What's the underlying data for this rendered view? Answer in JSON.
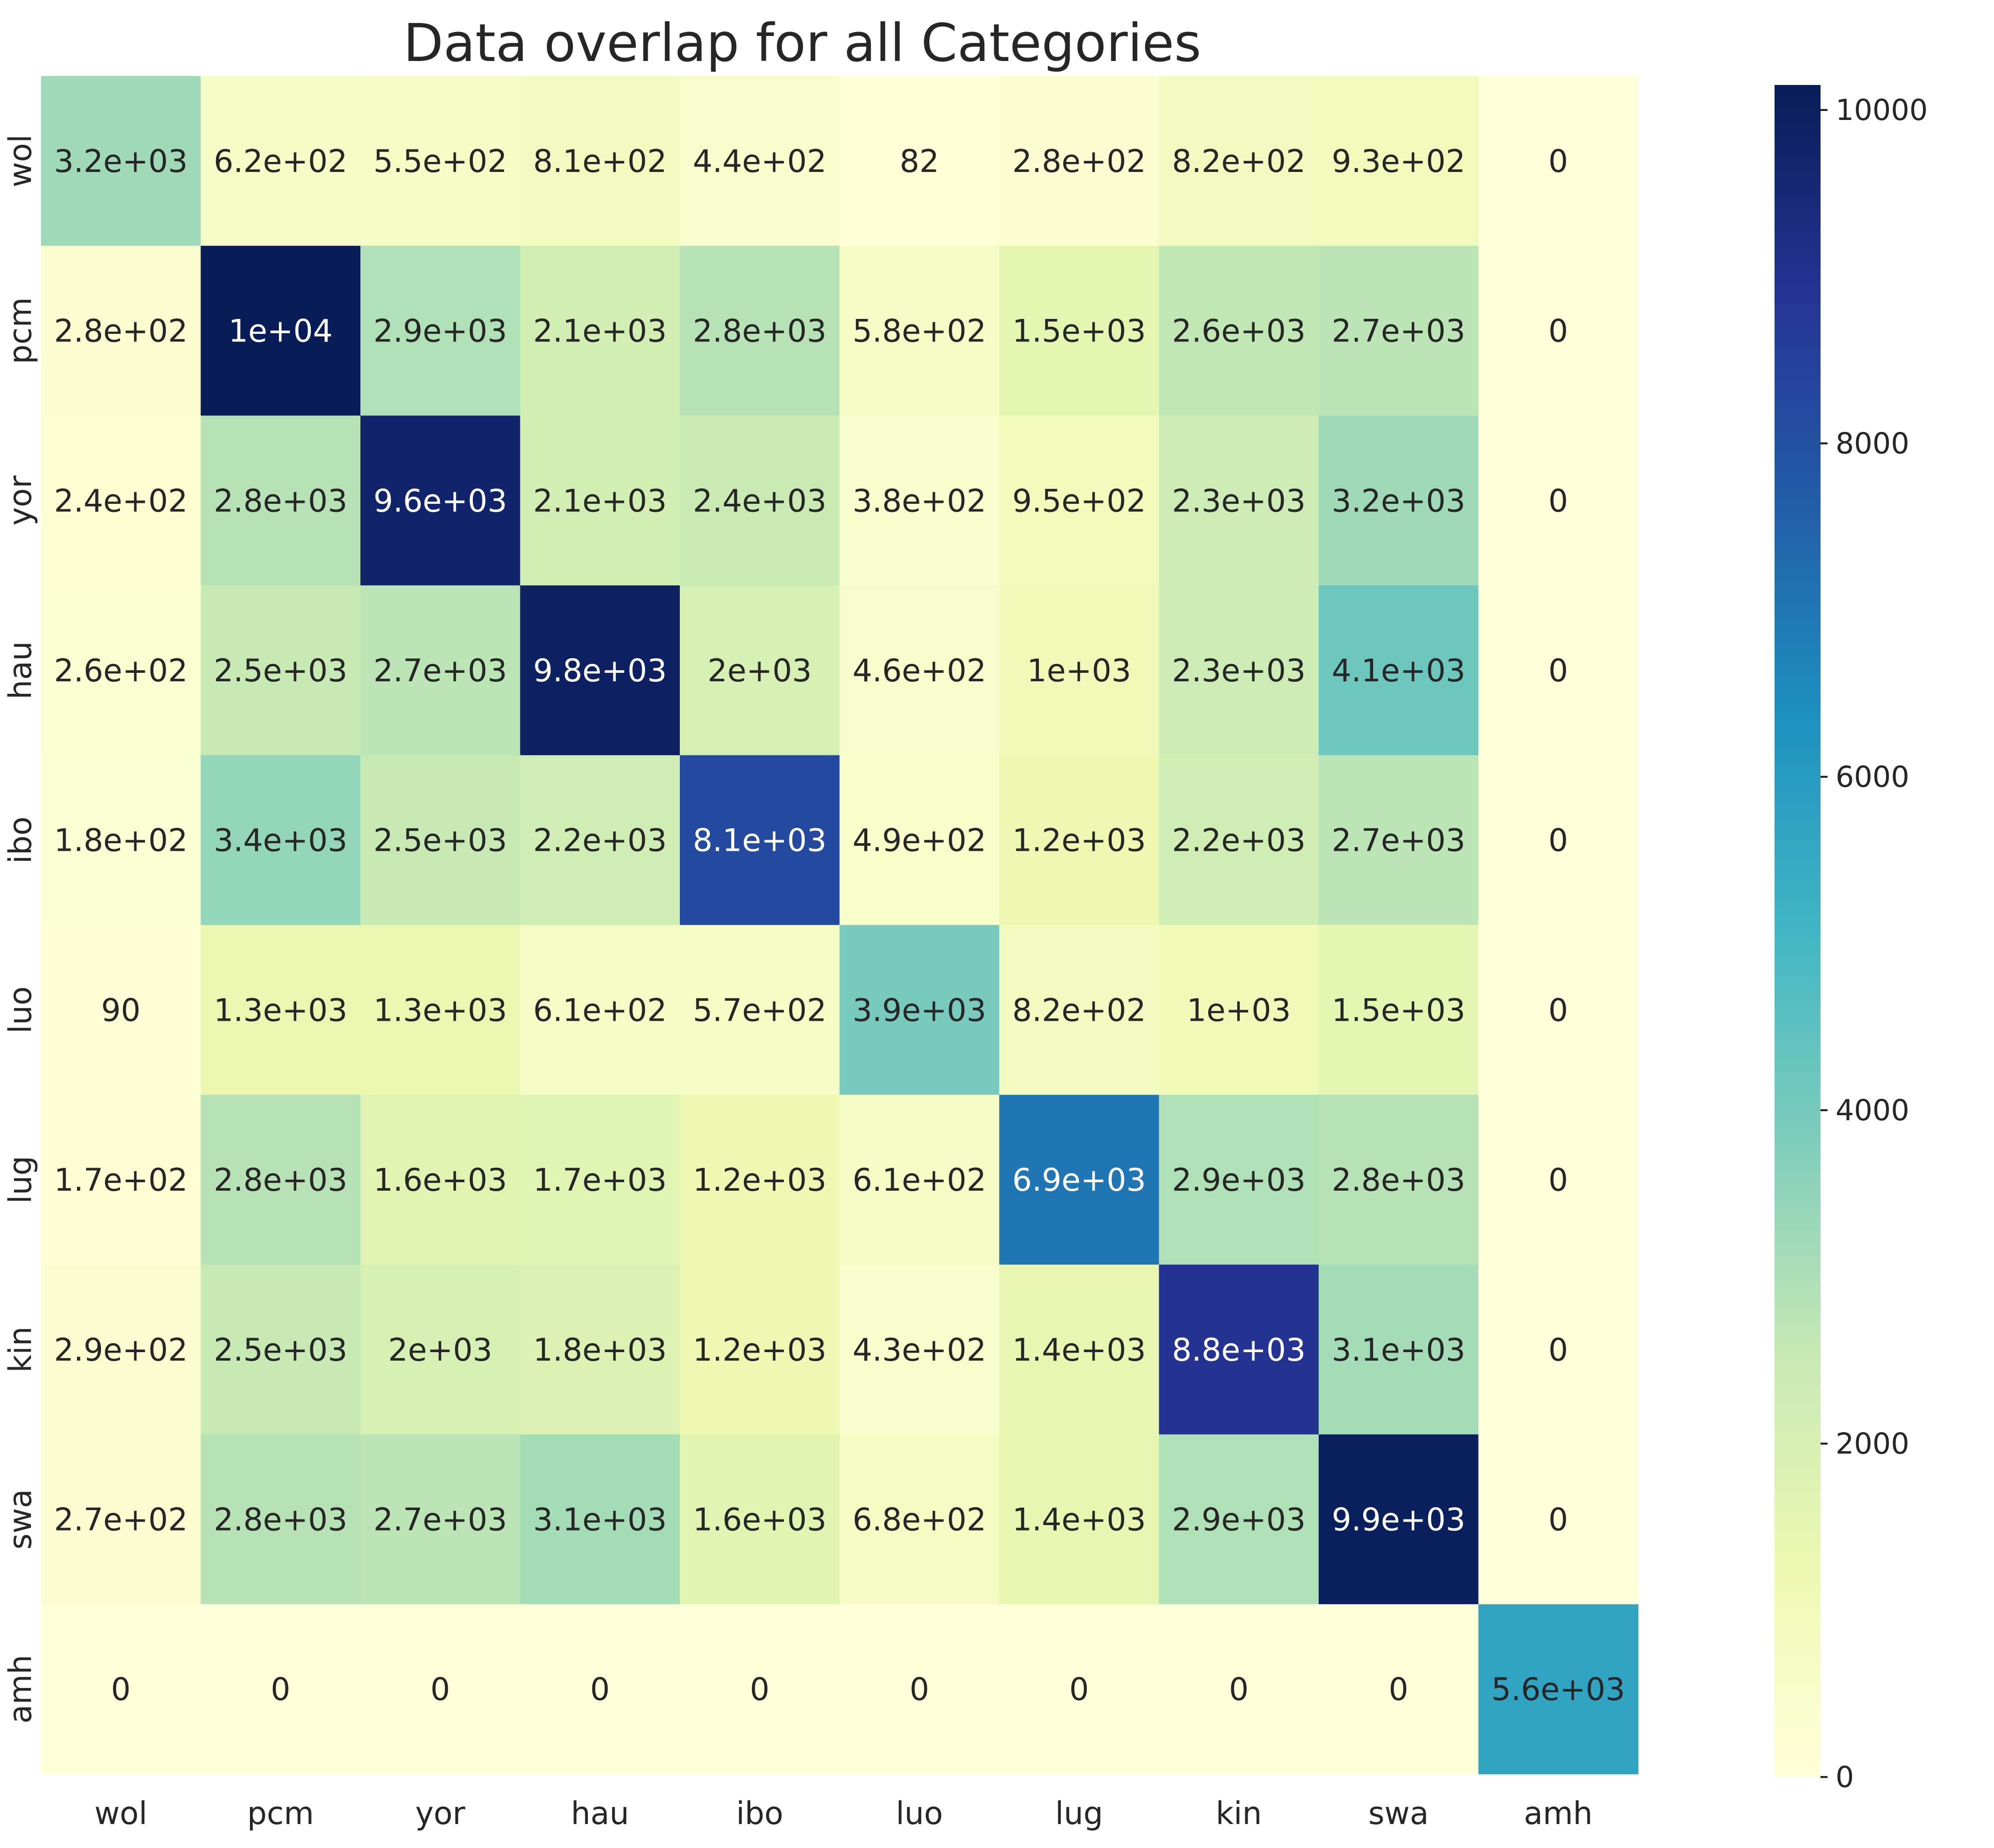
{
  "chart_data": {
    "type": "heatmap",
    "title": "Data overlap for all Categories",
    "x_labels": [
      "wol",
      "pcm",
      "yor",
      "hau",
      "ibo",
      "luo",
      "lug",
      "kin",
      "swa",
      "amh"
    ],
    "y_labels": [
      "wol",
      "pcm",
      "yor",
      "hau",
      "ibo",
      "luo",
      "lug",
      "kin",
      "swa",
      "amh"
    ],
    "values": [
      [
        3200,
        620,
        550,
        810,
        440,
        82,
        280,
        820,
        930,
        0
      ],
      [
        280,
        10000,
        2900,
        2100,
        2800,
        580,
        1500,
        2600,
        2700,
        0
      ],
      [
        240,
        2800,
        9600,
        2100,
        2400,
        380,
        950,
        2300,
        3200,
        0
      ],
      [
        260,
        2500,
        2700,
        9800,
        2000,
        460,
        1000,
        2300,
        4100,
        0
      ],
      [
        180,
        3400,
        2500,
        2200,
        8100,
        490,
        1200,
        2200,
        2700,
        0
      ],
      [
        90,
        1300,
        1300,
        610,
        570,
        3900,
        820,
        1000,
        1500,
        0
      ],
      [
        170,
        2800,
        1600,
        1700,
        1200,
        610,
        6900,
        2900,
        2800,
        0
      ],
      [
        290,
        2500,
        2000,
        1800,
        1200,
        430,
        1400,
        8800,
        3100,
        0
      ],
      [
        270,
        2800,
        2700,
        3100,
        1600,
        680,
        1400,
        2900,
        9900,
        0
      ],
      [
        0,
        0,
        0,
        0,
        0,
        0,
        0,
        0,
        0,
        5600
      ]
    ],
    "annotations": [
      [
        "3.2e+03",
        "6.2e+02",
        "5.5e+02",
        "8.1e+02",
        "4.4e+02",
        "82",
        "2.8e+02",
        "8.2e+02",
        "9.3e+02",
        "0"
      ],
      [
        "2.8e+02",
        "1e+04",
        "2.9e+03",
        "2.1e+03",
        "2.8e+03",
        "5.8e+02",
        "1.5e+03",
        "2.6e+03",
        "2.7e+03",
        "0"
      ],
      [
        "2.4e+02",
        "2.8e+03",
        "9.6e+03",
        "2.1e+03",
        "2.4e+03",
        "3.8e+02",
        "9.5e+02",
        "2.3e+03",
        "3.2e+03",
        "0"
      ],
      [
        "2.6e+02",
        "2.5e+03",
        "2.7e+03",
        "9.8e+03",
        "2e+03",
        "4.6e+02",
        "1e+03",
        "2.3e+03",
        "4.1e+03",
        "0"
      ],
      [
        "1.8e+02",
        "3.4e+03",
        "2.5e+03",
        "2.2e+03",
        "8.1e+03",
        "4.9e+02",
        "1.2e+03",
        "2.2e+03",
        "2.7e+03",
        "0"
      ],
      [
        "90",
        "1.3e+03",
        "1.3e+03",
        "6.1e+02",
        "5.7e+02",
        "3.9e+03",
        "8.2e+02",
        "1e+03",
        "1.5e+03",
        "0"
      ],
      [
        "1.7e+02",
        "2.8e+03",
        "1.6e+03",
        "1.7e+03",
        "1.2e+03",
        "6.1e+02",
        "6.9e+03",
        "2.9e+03",
        "2.8e+03",
        "0"
      ],
      [
        "2.9e+02",
        "2.5e+03",
        "2e+03",
        "1.8e+03",
        "1.2e+03",
        "4.3e+02",
        "1.4e+03",
        "8.8e+03",
        "3.1e+03",
        "0"
      ],
      [
        "2.7e+02",
        "2.8e+03",
        "2.7e+03",
        "3.1e+03",
        "1.6e+03",
        "6.8e+02",
        "1.4e+03",
        "2.9e+03",
        "9.9e+03",
        "0"
      ],
      [
        "0",
        "0",
        "0",
        "0",
        "0",
        "0",
        "0",
        "0",
        "0",
        "5.6e+03"
      ]
    ],
    "colormap": "YlGnBu",
    "colorbar": {
      "range": [
        0,
        10000
      ],
      "ticks": [
        0,
        2000,
        4000,
        6000,
        8000,
        10000
      ],
      "tick_labels": [
        "0",
        "2000",
        "4000",
        "6000",
        "8000",
        "10000"
      ]
    },
    "colors": {
      "text_dark": "#262626",
      "text_light": "#ffffff",
      "ylgnbu": [
        "#ffffd9",
        "#edf8b1",
        "#c7e9b4",
        "#7fcdbb",
        "#41b6c4",
        "#1d91c0",
        "#225ea8",
        "#253494",
        "#081d58"
      ]
    },
    "grid": false,
    "legend": "none"
  }
}
